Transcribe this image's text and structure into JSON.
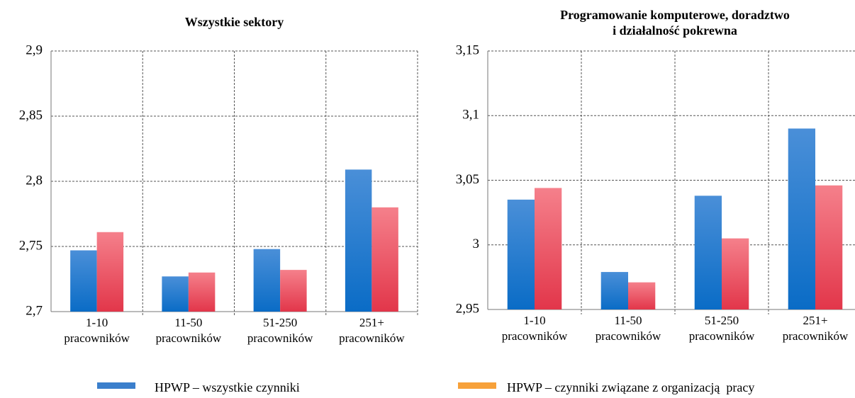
{
  "chart_data": [
    {
      "type": "bar",
      "title": "Wszystkie sektory",
      "categories": [
        "1-10\npracowników",
        "11-50\npracowników",
        "51-250\npracowników",
        "251+\npracowników"
      ],
      "series": [
        {
          "name": "HPWP – wszystkie czynniki",
          "color": "#1a78cc",
          "legend_color": "#3b7fcc",
          "values": [
            2.747,
            2.727,
            2.748,
            2.809
          ]
        },
        {
          "name": "HPWP – czynniki związane z organizacją  pracy",
          "color": "#e8475a",
          "legend_color": "#f7a13a",
          "values": [
            2.761,
            2.73,
            2.732,
            2.78
          ]
        }
      ],
      "ylim": [
        2.7,
        2.9
      ],
      "yticks": [
        {
          "value": 2.7,
          "label": "2,7"
        },
        {
          "value": 2.75,
          "label": "2,75"
        },
        {
          "value": 2.8,
          "label": "2,8"
        },
        {
          "value": 2.85,
          "label": "2,85"
        },
        {
          "value": 2.9,
          "label": "2,9"
        }
      ],
      "grid": true
    },
    {
      "type": "bar",
      "title": "Programowanie komputerowe, doradztwo\ni działalność pokrewna",
      "categories": [
        "1-10\npracowników",
        "11-50\npracowników",
        "51-250\npracowników",
        "251+\npracowników"
      ],
      "series": [
        {
          "name": "HPWP – wszystkie czynniki",
          "color": "#1a78cc",
          "values": [
            3.035,
            2.979,
            3.038,
            3.09
          ]
        },
        {
          "name": "HPWP – czynniki związane z organizacją  pracy",
          "color": "#e8475a",
          "values": [
            3.044,
            2.971,
            3.005,
            3.046
          ]
        }
      ],
      "ylim": [
        2.95,
        3.15
      ],
      "yticks": [
        {
          "value": 2.95,
          "label": "2,95"
        },
        {
          "value": 3,
          "label": "3"
        },
        {
          "value": 3.05,
          "label": "3,05"
        },
        {
          "value": 3.1,
          "label": "3,1"
        },
        {
          "value": 3.15,
          "label": "3,15"
        }
      ],
      "grid": true
    }
  ]
}
